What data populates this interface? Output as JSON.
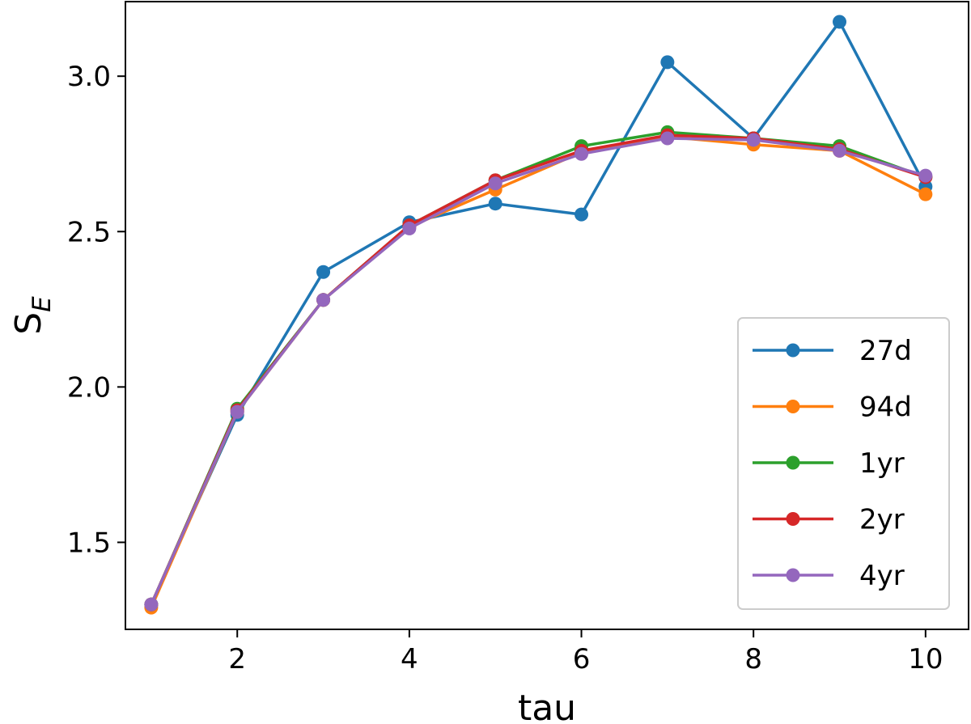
{
  "chart_data": {
    "type": "line",
    "xlabel": "tau",
    "ylabel_base": "S",
    "ylabel_sub": "E",
    "xlim": [
      0.7,
      10.5
    ],
    "ylim": [
      1.22,
      3.24
    ],
    "xticks": [
      2,
      4,
      6,
      8,
      10
    ],
    "xtick_labels": [
      "2",
      "4",
      "6",
      "8",
      "10"
    ],
    "yticks": [
      1.5,
      2.0,
      2.5,
      3.0
    ],
    "ytick_labels": [
      "1.5",
      "2.0",
      "2.5",
      "3.0"
    ],
    "grid": false,
    "legend_position": "lower-right",
    "x": [
      1,
      2,
      3,
      4,
      5,
      6,
      7,
      8,
      9,
      10
    ],
    "series": [
      {
        "name": "27d",
        "color": "#1f77b4",
        "values": [
          1.3,
          1.91,
          2.37,
          2.53,
          2.59,
          2.555,
          3.045,
          2.8,
          3.175,
          2.645
        ]
      },
      {
        "name": "94d",
        "color": "#ff7f0e",
        "values": [
          1.29,
          1.92,
          2.28,
          2.515,
          2.635,
          2.755,
          2.805,
          2.78,
          2.76,
          2.62
        ]
      },
      {
        "name": "1yr",
        "color": "#2ca02c",
        "values": [
          1.3,
          1.93,
          2.28,
          2.52,
          2.665,
          2.775,
          2.82,
          2.8,
          2.775,
          2.675
        ]
      },
      {
        "name": "2yr",
        "color": "#d62728",
        "values": [
          1.3,
          1.925,
          2.28,
          2.52,
          2.665,
          2.76,
          2.81,
          2.8,
          2.765,
          2.675
        ]
      },
      {
        "name": "4yr",
        "color": "#9467bd",
        "values": [
          1.3,
          1.92,
          2.28,
          2.51,
          2.655,
          2.75,
          2.8,
          2.795,
          2.76,
          2.68
        ]
      }
    ]
  }
}
